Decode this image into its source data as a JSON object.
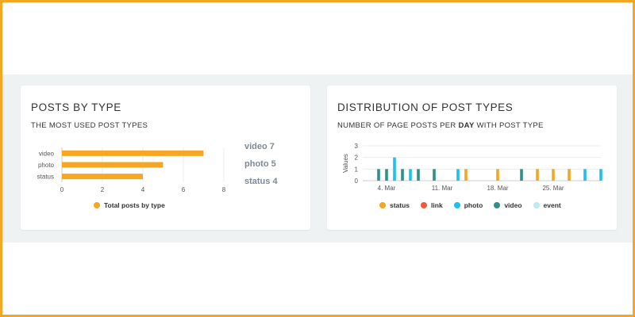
{
  "panels": {
    "left": {
      "title": "POSTS BY TYPE",
      "subtitle": "THE MOST USED POST TYPES",
      "side_labels": [
        "video 7",
        "photo 5",
        "status 4"
      ],
      "legend": [
        {
          "label": "Total posts by type",
          "color": "#f5a623"
        }
      ]
    },
    "right": {
      "title": "DISTRIBUTION OF POST TYPES",
      "subtitle_pre": "NUMBER OF PAGE POSTS PER ",
      "subtitle_bold": "DAY",
      "subtitle_post": " WITH POST TYPE",
      "legend": [
        {
          "label": "status",
          "color": "#f5a623"
        },
        {
          "label": "link",
          "color": "#f15a36"
        },
        {
          "label": "photo",
          "color": "#1ec0ef"
        },
        {
          "label": "video",
          "color": "#2f8f8a"
        },
        {
          "label": "event",
          "color": "#bfe7f7"
        }
      ]
    }
  },
  "chart_data": [
    {
      "type": "bar",
      "orientation": "horizontal",
      "categories": [
        "video",
        "photo",
        "status"
      ],
      "values": [
        7,
        5,
        4
      ],
      "series": [
        {
          "name": "Total posts by type",
          "values": [
            7,
            5,
            4
          ]
        }
      ],
      "xlim": [
        0,
        8
      ],
      "xticks": [
        0,
        2,
        4,
        6,
        8
      ],
      "color": "#f5a623",
      "grid": true,
      "legend": "bottom"
    },
    {
      "type": "bar",
      "ylabel": "Values",
      "ylim": [
        0,
        3
      ],
      "yticks": [
        0,
        1,
        2,
        3
      ],
      "xtick_labels": [
        "4. Mar",
        "11. Mar",
        "18. Mar",
        "25. Mar"
      ],
      "x_start": "2019-03-01",
      "x_end": "2019-03-31",
      "tick_dates": [
        "2019-03-04",
        "2019-03-11",
        "2019-03-18",
        "2019-03-25"
      ],
      "series": [
        {
          "name": "status",
          "color": "#f5a623",
          "points": [
            [
              "2019-03-14",
              1
            ],
            [
              "2019-03-18",
              1
            ],
            [
              "2019-03-23",
              1
            ],
            [
              "2019-03-25",
              1
            ],
            [
              "2019-03-27",
              1
            ]
          ]
        },
        {
          "name": "link",
          "color": "#f15a36",
          "points": []
        },
        {
          "name": "photo",
          "color": "#1ec0ef",
          "points": [
            [
              "2019-03-05",
              2
            ],
            [
              "2019-03-07",
              1
            ],
            [
              "2019-03-13",
              1
            ],
            [
              "2019-03-29",
              1
            ],
            [
              "2019-03-31",
              1
            ]
          ]
        },
        {
          "name": "video",
          "color": "#2f8f8a",
          "points": [
            [
              "2019-03-03",
              1
            ],
            [
              "2019-03-04",
              1
            ],
            [
              "2019-03-06",
              1
            ],
            [
              "2019-03-08",
              1
            ],
            [
              "2019-03-10",
              1
            ],
            [
              "2019-03-21",
              1
            ]
          ]
        },
        {
          "name": "event",
          "color": "#bfe7f7",
          "points": []
        }
      ],
      "grid": true,
      "legend": "bottom"
    }
  ]
}
